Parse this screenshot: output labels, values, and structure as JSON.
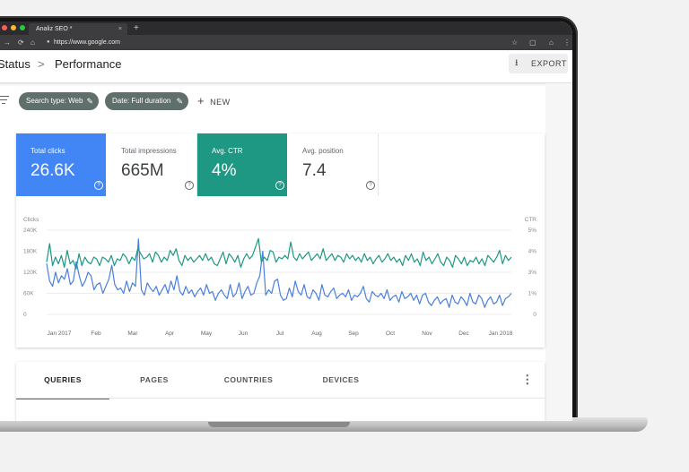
{
  "browser": {
    "tab_title": "Analiz SEO *",
    "tab_close": "×",
    "new_tab": "+",
    "url": "https://www.google.com",
    "traffic_lights": [
      "#ff5f57",
      "#febc2e",
      "#28c840"
    ]
  },
  "header": {
    "breadcrumb_parent": "Status",
    "breadcrumb_sep": ">",
    "title": "Performance",
    "export_label": "EXPORT"
  },
  "filters": {
    "chips": [
      {
        "label": "Search type: Web"
      },
      {
        "label": "Date: Full duration"
      }
    ],
    "new_label": "NEW"
  },
  "metrics": [
    {
      "label": "Total clicks",
      "value": "26.6K",
      "bg": "#4285f4",
      "fg": "#ffffff"
    },
    {
      "label": "Total impressions",
      "value": "665M",
      "bg": "#ffffff",
      "fg": "#5f6368"
    },
    {
      "label": "Avg. CTR",
      "value": "4%",
      "bg": "#1e9882",
      "fg": "#ffffff"
    },
    {
      "label": "Avg. position",
      "value": "7.4",
      "bg": "#ffffff",
      "fg": "#5f6368"
    }
  ],
  "chart_data": {
    "type": "line",
    "left_axis_label": "Clicks",
    "right_axis_label": "CTR",
    "left_ticks": [
      "240K",
      "180K",
      "120K",
      "60K",
      "0"
    ],
    "right_ticks": [
      "5%",
      "4%",
      "3%",
      "1%",
      "0"
    ],
    "x_labels": [
      "Jan 2017",
      "Feb",
      "Mar",
      "Apr",
      "May",
      "Jun",
      "Jul",
      "Aug",
      "Sep",
      "Oct",
      "Nov",
      "Dec",
      "Jan 2018"
    ],
    "ylim_left": [
      0,
      240000
    ],
    "ylim_right": [
      0,
      5
    ],
    "series": [
      {
        "color": "#4a7fdd",
        "axis": "left",
        "values": [
          145000,
          95000,
          80000,
          120000,
          90000,
          110000,
          100000,
          130000,
          85000,
          95000,
          150000,
          110000,
          80000,
          95000,
          120000,
          110000,
          70000,
          85000,
          90000,
          60000,
          80000,
          100000,
          140000,
          85000,
          70000,
          75000,
          60000,
          95000,
          65000,
          90000,
          80000,
          215000,
          70000,
          55000,
          90000,
          75000,
          65000,
          80000,
          55000,
          70000,
          85000,
          60000,
          95000,
          70000,
          110000,
          65000,
          55000,
          80000,
          60000,
          70000,
          50000,
          65000,
          75000,
          55000,
          85000,
          60000,
          65000,
          40000,
          60000,
          70000,
          55000,
          45000,
          85000,
          50000,
          60000,
          90000,
          45000,
          65000,
          80000,
          55000,
          60000,
          90000,
          110000,
          180000,
          55000,
          70000,
          60000,
          95000,
          100000,
          55000,
          40000,
          45000,
          75000,
          50000,
          95000,
          65000,
          55000,
          85000,
          50000,
          45000,
          70000,
          60000,
          40000,
          85000,
          55000,
          50000,
          65000,
          75000,
          45000,
          55000,
          60000,
          50000,
          70000,
          40000,
          55000,
          50000,
          60000,
          80000,
          45000,
          35000,
          65000,
          55000,
          50000,
          60000,
          45000,
          70000,
          40000,
          50000,
          55000,
          35000,
          65000,
          45000,
          50000,
          60000,
          40000,
          55000,
          30000,
          55000,
          60000,
          35000,
          25000,
          40000,
          50000,
          30000,
          40000,
          45000,
          20000,
          55000,
          35000,
          30000,
          50000,
          40000,
          25000,
          60000,
          35000,
          30000,
          55000,
          45000,
          20000,
          40000,
          50000,
          30000,
          35000,
          55000,
          25000,
          45000,
          50000,
          60000
        ]
      },
      {
        "color": "#1e9882",
        "axis": "right",
        "values": [
          3.1,
          4.2,
          2.9,
          3.4,
          3.0,
          3.5,
          2.8,
          3.8,
          3.0,
          3.2,
          2.7,
          3.6,
          2.9,
          3.4,
          3.1,
          3.0,
          3.4,
          3.3,
          2.9,
          3.4,
          3.3,
          3.1,
          3.5,
          2.9,
          3.3,
          3.2,
          3.6,
          3.4,
          3.0,
          3.4,
          3.2,
          3.9,
          3.6,
          3.3,
          3.4,
          3.6,
          3.1,
          3.7,
          3.5,
          3.1,
          3.4,
          3.2,
          3.8,
          3.5,
          3.9,
          3.2,
          2.9,
          3.5,
          3.2,
          3.4,
          3.1,
          3.3,
          3.5,
          3.2,
          3.6,
          3.2,
          3.4,
          3.0,
          2.9,
          3.3,
          3.7,
          3.0,
          3.6,
          3.4,
          3.1,
          3.5,
          2.8,
          3.3,
          3.6,
          3.3,
          3.5,
          4.0,
          4.5,
          3.1,
          3.4,
          3.2,
          3.8,
          3.7,
          3.1,
          3.4,
          3.3,
          3.5,
          3.3,
          4.3,
          3.4,
          3.2,
          3.6,
          3.3,
          3.5,
          3.7,
          3.2,
          3.4,
          3.6,
          3.3,
          3.9,
          3.2,
          3.4,
          3.6,
          3.2,
          3.5,
          3.4,
          3.1,
          3.6,
          3.3,
          3.5,
          3.2,
          3.4,
          3.1,
          3.6,
          3.2,
          3.4,
          3.0,
          3.3,
          3.5,
          3.1,
          3.3,
          3.6,
          3.2,
          3.4,
          3.1,
          3.3,
          2.9,
          3.5,
          3.2,
          3.6,
          3.1,
          3.3,
          2.9,
          3.7,
          3.2,
          3.4,
          3.0,
          3.3,
          3.6,
          3.1,
          2.9,
          3.4,
          3.2,
          2.8,
          3.5,
          3.3,
          3.0,
          3.4,
          2.9,
          3.2,
          3.1,
          3.4,
          3.0,
          3.3,
          2.9,
          3.5,
          3.3,
          3.1,
          3.4,
          3.8,
          3.0,
          3.5,
          3.2,
          3.4
        ]
      }
    ]
  },
  "tabs": {
    "items": [
      {
        "label": "QUERIES",
        "active": true
      },
      {
        "label": "PAGES"
      },
      {
        "label": "COUNTRIES"
      },
      {
        "label": "DEVICES"
      }
    ],
    "more_icon": "⋮"
  }
}
